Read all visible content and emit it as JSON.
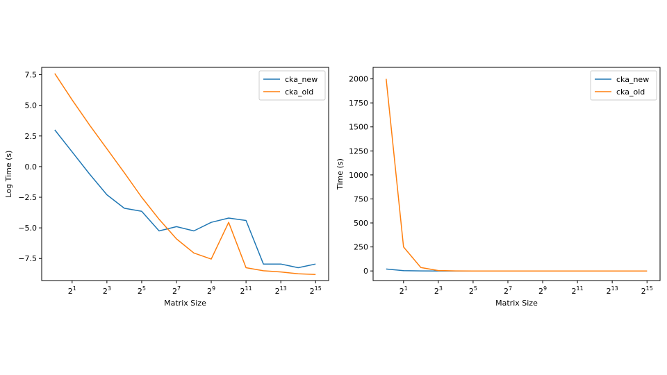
{
  "figure": {
    "background": "#ffffff"
  },
  "chart_data": [
    {
      "type": "line",
      "title": "",
      "xlabel": "Matrix Size",
      "ylabel": "Log Time (s)",
      "x_scale": "log2",
      "x": [
        1,
        2,
        4,
        8,
        16,
        32,
        64,
        128,
        256,
        512,
        1024,
        2048,
        4096,
        8192,
        16384,
        32768
      ],
      "x_ticks": [
        {
          "base": "2",
          "exp": "1"
        },
        {
          "base": "2",
          "exp": "3"
        },
        {
          "base": "2",
          "exp": "5"
        },
        {
          "base": "2",
          "exp": "7"
        },
        {
          "base": "2",
          "exp": "9"
        },
        {
          "base": "2",
          "exp": "11"
        },
        {
          "base": "2",
          "exp": "13"
        },
        {
          "base": "2",
          "exp": "15"
        }
      ],
      "ylim": [
        -9.3,
        8.1
      ],
      "y_ticks": [
        -7.5,
        -5.0,
        -2.5,
        0.0,
        2.5,
        5.0,
        7.5
      ],
      "y_tick_labels": [
        "−7.5",
        "−5.0",
        "−2.5",
        "0.0",
        "2.5",
        "5.0",
        "7.5"
      ],
      "grid": false,
      "legend_position": "top-right",
      "series": [
        {
          "name": "cka_new",
          "color": "#1f77b4",
          "values": [
            3.0,
            1.2,
            -0.6,
            -2.3,
            -3.4,
            -3.65,
            -5.25,
            -4.9,
            -5.25,
            -4.55,
            -4.2,
            -4.4,
            -7.95,
            -7.95,
            -8.25,
            -7.95
          ]
        },
        {
          "name": "cka_old",
          "color": "#ff7f0e",
          "values": [
            7.6,
            5.45,
            3.4,
            1.45,
            -0.5,
            -2.5,
            -4.3,
            -5.9,
            -7.05,
            -7.55,
            -4.55,
            -8.25,
            -8.5,
            -8.6,
            -8.75,
            -8.8
          ]
        }
      ]
    },
    {
      "type": "line",
      "title": "",
      "xlabel": "Matrix Size",
      "ylabel": "Time (s)",
      "x_scale": "log2",
      "x": [
        1,
        2,
        4,
        8,
        16,
        32,
        64,
        128,
        256,
        512,
        1024,
        2048,
        4096,
        8192,
        16384,
        32768
      ],
      "x_ticks": [
        {
          "base": "2",
          "exp": "1"
        },
        {
          "base": "2",
          "exp": "3"
        },
        {
          "base": "2",
          "exp": "5"
        },
        {
          "base": "2",
          "exp": "7"
        },
        {
          "base": "2",
          "exp": "9"
        },
        {
          "base": "2",
          "exp": "11"
        },
        {
          "base": "2",
          "exp": "13"
        },
        {
          "base": "2",
          "exp": "15"
        }
      ],
      "ylim": [
        -100,
        2120
      ],
      "y_ticks": [
        0,
        250,
        500,
        750,
        1000,
        1250,
        1500,
        1750,
        2000
      ],
      "y_tick_labels": [
        "0",
        "250",
        "500",
        "750",
        "1000",
        "1250",
        "1500",
        "1750",
        "2000"
      ],
      "grid": false,
      "legend_position": "top-right",
      "series": [
        {
          "name": "cka_new",
          "color": "#1f77b4",
          "values": [
            20,
            3.3,
            0.55,
            0.1,
            0.03,
            0.026,
            0.005,
            0.007,
            0.005,
            0.01,
            0.015,
            0.012,
            0.0004,
            0.0004,
            0.0003,
            0.0004
          ]
        },
        {
          "name": "cka_old",
          "color": "#ff7f0e",
          "values": [
            2000,
            250,
            35,
            4.3,
            0.6,
            0.08,
            0.013,
            0.003,
            0.0009,
            0.0005,
            0.011,
            0.0003,
            0.0002,
            0.0002,
            0.0002,
            0.0002
          ]
        }
      ]
    }
  ]
}
